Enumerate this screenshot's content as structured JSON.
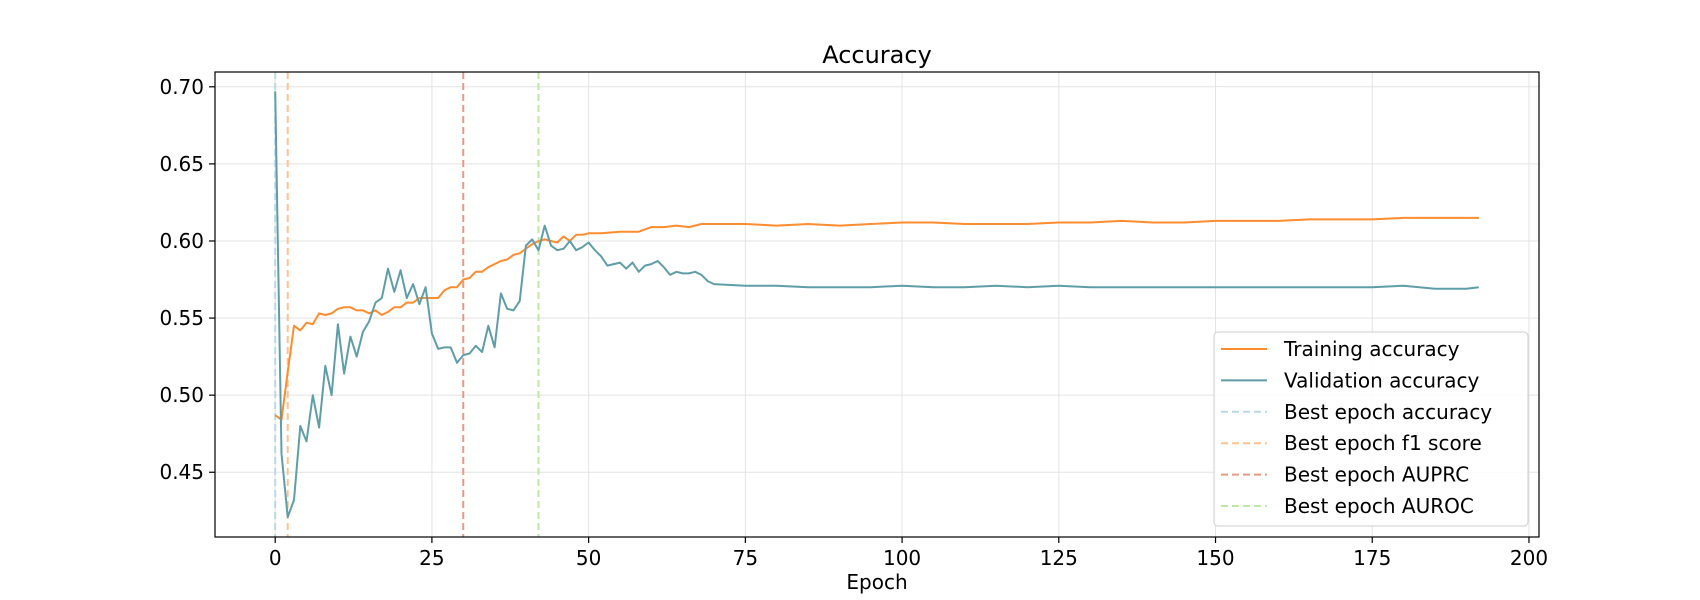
{
  "chart_data": {
    "type": "line",
    "title": "Accuracy",
    "xlabel": "Epoch",
    "ylabel": "",
    "xlim": [
      -9.6,
      201.6
    ],
    "ylim": [
      0.408,
      0.7096
    ],
    "xticks": [
      0,
      25,
      50,
      75,
      100,
      125,
      150,
      175,
      200
    ],
    "yticks": [
      0.45,
      0.5,
      0.55,
      0.6,
      0.65,
      0.7
    ],
    "xtick_labels": [
      "0",
      "25",
      "50",
      "75",
      "100",
      "125",
      "150",
      "175",
      "200"
    ],
    "ytick_labels": [
      "0.45",
      "0.50",
      "0.55",
      "0.60",
      "0.65",
      "0.70"
    ],
    "grid": true,
    "legend_position": "lower-right",
    "series": [
      {
        "name": "Training accuracy",
        "color": "#ff8c2e",
        "x": [
          0,
          1,
          2,
          3,
          4,
          5,
          6,
          7,
          8,
          9,
          10,
          11,
          12,
          13,
          14,
          15,
          16,
          17,
          18,
          19,
          20,
          21,
          22,
          23,
          24,
          25,
          26,
          27,
          28,
          29,
          30,
          31,
          32,
          33,
          34,
          35,
          36,
          37,
          38,
          39,
          40,
          41,
          42,
          43,
          44,
          45,
          46,
          47,
          48,
          49,
          50,
          52,
          55,
          58,
          60,
          62,
          64,
          66,
          68,
          70,
          75,
          80,
          85,
          90,
          95,
          100,
          105,
          110,
          115,
          120,
          125,
          130,
          135,
          140,
          145,
          150,
          155,
          160,
          165,
          170,
          175,
          180,
          185,
          190,
          192
        ],
        "y": [
          0.487,
          0.484,
          0.515,
          0.545,
          0.542,
          0.547,
          0.546,
          0.553,
          0.552,
          0.553,
          0.556,
          0.557,
          0.557,
          0.555,
          0.555,
          0.553,
          0.555,
          0.552,
          0.554,
          0.557,
          0.557,
          0.56,
          0.56,
          0.563,
          0.563,
          0.563,
          0.563,
          0.568,
          0.57,
          0.57,
          0.575,
          0.576,
          0.58,
          0.58,
          0.583,
          0.585,
          0.587,
          0.588,
          0.591,
          0.592,
          0.595,
          0.598,
          0.6,
          0.601,
          0.6,
          0.599,
          0.603,
          0.6,
          0.604,
          0.604,
          0.605,
          0.605,
          0.606,
          0.606,
          0.609,
          0.609,
          0.61,
          0.609,
          0.611,
          0.611,
          0.611,
          0.61,
          0.611,
          0.61,
          0.611,
          0.612,
          0.612,
          0.611,
          0.611,
          0.611,
          0.612,
          0.612,
          0.613,
          0.612,
          0.612,
          0.613,
          0.613,
          0.613,
          0.614,
          0.614,
          0.614,
          0.615,
          0.615,
          0.615,
          0.615
        ]
      },
      {
        "name": "Validation accuracy",
        "color": "#5f9ea8",
        "x": [
          0,
          1,
          2,
          3,
          4,
          5,
          6,
          7,
          8,
          9,
          10,
          11,
          12,
          13,
          14,
          15,
          16,
          17,
          18,
          19,
          20,
          21,
          22,
          23,
          24,
          25,
          26,
          27,
          28,
          29,
          30,
          31,
          32,
          33,
          34,
          35,
          36,
          37,
          38,
          39,
          40,
          41,
          42,
          43,
          44,
          45,
          46,
          47,
          48,
          49,
          50,
          51,
          52,
          53,
          54,
          55,
          56,
          57,
          58,
          59,
          60,
          61,
          62,
          63,
          64,
          65,
          66,
          67,
          68,
          69,
          70,
          75,
          80,
          85,
          90,
          95,
          100,
          105,
          110,
          115,
          120,
          125,
          130,
          135,
          140,
          145,
          150,
          155,
          160,
          165,
          170,
          175,
          180,
          185,
          190,
          192
        ],
        "y": [
          0.697,
          0.462,
          0.421,
          0.432,
          0.48,
          0.47,
          0.5,
          0.479,
          0.519,
          0.5,
          0.546,
          0.514,
          0.538,
          0.525,
          0.541,
          0.548,
          0.56,
          0.563,
          0.582,
          0.567,
          0.581,
          0.563,
          0.572,
          0.559,
          0.57,
          0.54,
          0.53,
          0.531,
          0.531,
          0.521,
          0.526,
          0.527,
          0.532,
          0.528,
          0.545,
          0.531,
          0.566,
          0.556,
          0.555,
          0.561,
          0.597,
          0.601,
          0.594,
          0.61,
          0.597,
          0.594,
          0.595,
          0.6,
          0.594,
          0.596,
          0.599,
          0.594,
          0.59,
          0.584,
          0.585,
          0.586,
          0.582,
          0.586,
          0.58,
          0.584,
          0.585,
          0.587,
          0.583,
          0.578,
          0.58,
          0.579,
          0.579,
          0.58,
          0.578,
          0.574,
          0.572,
          0.571,
          0.571,
          0.57,
          0.57,
          0.57,
          0.571,
          0.57,
          0.57,
          0.571,
          0.57,
          0.571,
          0.57,
          0.57,
          0.57,
          0.57,
          0.57,
          0.57,
          0.57,
          0.57,
          0.57,
          0.57,
          0.571,
          0.569,
          0.569,
          0.57
        ]
      }
    ],
    "vlines": [
      {
        "name": "Best epoch accuracy",
        "x": 0,
        "color": "#b9d9e6"
      },
      {
        "name": "Best epoch f1 score",
        "x": 2,
        "color": "#ffc38f"
      },
      {
        "name": "Best epoch AUPRC",
        "x": 30,
        "color": "#ea9a82"
      },
      {
        "name": "Best epoch AUROC",
        "x": 42,
        "color": "#bfe8a6"
      }
    ]
  }
}
